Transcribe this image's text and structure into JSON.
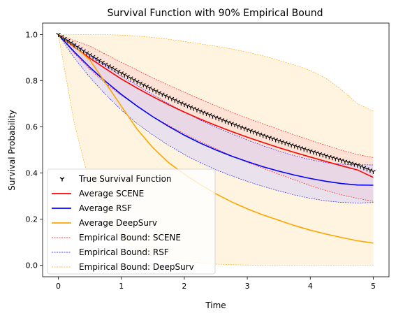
{
  "chart_data": {
    "type": "line",
    "title": "Survival Function with 90% Empirical Bound",
    "xlabel": "Time",
    "ylabel": "Survival Probability",
    "xlim": [
      -0.25,
      5.25
    ],
    "ylim": [
      -0.05,
      1.05
    ],
    "xticks": [
      0,
      1,
      2,
      3,
      4,
      5
    ],
    "xtick_labels": [
      "0",
      "1",
      "2",
      "3",
      "4",
      "5"
    ],
    "yticks": [
      0.0,
      0.2,
      0.4,
      0.6,
      0.8,
      1.0
    ],
    "ytick_labels": [
      "0.0",
      "0.2",
      "0.4",
      "0.6",
      "0.8",
      "1.0"
    ],
    "grid": false,
    "legend_position": "lower-left",
    "x": [
      0,
      0.25,
      0.5,
      0.75,
      1.0,
      1.25,
      1.5,
      1.75,
      2.0,
      2.25,
      2.5,
      2.75,
      3.0,
      3.25,
      3.5,
      3.75,
      4.0,
      4.25,
      4.5,
      4.75,
      5.0
    ],
    "series": [
      {
        "name": "True Survival Function",
        "style": "markers",
        "color": "#000000",
        "values": [
          1.0,
          0.955,
          0.912,
          0.871,
          0.833,
          0.796,
          0.761,
          0.728,
          0.697,
          0.668,
          0.641,
          0.614,
          0.588,
          0.563,
          0.539,
          0.517,
          0.495,
          0.474,
          0.454,
          0.434,
          0.406
        ]
      },
      {
        "name": "Average SCENE",
        "style": "line",
        "color": "#ff0000",
        "values": [
          1.0,
          0.947,
          0.898,
          0.852,
          0.808,
          0.768,
          0.731,
          0.696,
          0.664,
          0.634,
          0.606,
          0.58,
          0.555,
          0.532,
          0.51,
          0.489,
          0.469,
          0.45,
          0.431,
          0.413,
          0.381
        ]
      },
      {
        "name": "Average RSF",
        "style": "line",
        "color": "#0000ff",
        "values": [
          1.0,
          0.926,
          0.858,
          0.797,
          0.741,
          0.69,
          0.644,
          0.602,
          0.564,
          0.53,
          0.5,
          0.473,
          0.449,
          0.427,
          0.408,
          0.391,
          0.376,
          0.364,
          0.354,
          0.348,
          0.347
        ]
      },
      {
        "name": "Average DeepSurv",
        "style": "line",
        "color": "#ffa500",
        "values": [
          1.0,
          0.95,
          0.89,
          0.79,
          0.69,
          0.59,
          0.51,
          0.445,
          0.395,
          0.35,
          0.31,
          0.275,
          0.245,
          0.218,
          0.195,
          0.172,
          0.152,
          0.135,
          0.12,
          0.106,
          0.096
        ]
      },
      {
        "name": "Empirical Bound: SCENE",
        "style": "band",
        "color": "#ff0000",
        "fill": "#ffc8c8",
        "upper": [
          1.0,
          0.975,
          0.95,
          0.915,
          0.88,
          0.846,
          0.812,
          0.78,
          0.75,
          0.72,
          0.692,
          0.664,
          0.638,
          0.613,
          0.589,
          0.565,
          0.542,
          0.52,
          0.498,
          0.48,
          0.467
        ],
        "lower": [
          1.0,
          0.92,
          0.85,
          0.788,
          0.736,
          0.69,
          0.645,
          0.606,
          0.57,
          0.537,
          0.505,
          0.475,
          0.446,
          0.42,
          0.395,
          0.37,
          0.345,
          0.324,
          0.305,
          0.29,
          0.277
        ]
      },
      {
        "name": "Empirical Bound: RSF",
        "style": "band",
        "color": "#0000ff",
        "fill": "#c8c8ff",
        "upper": [
          1.0,
          0.96,
          0.91,
          0.865,
          0.82,
          0.78,
          0.74,
          0.7,
          0.665,
          0.63,
          0.598,
          0.57,
          0.543,
          0.518,
          0.495,
          0.475,
          0.458,
          0.445,
          0.438,
          0.436,
          0.435
        ],
        "lower": [
          1.0,
          0.9,
          0.815,
          0.74,
          0.673,
          0.614,
          0.565,
          0.52,
          0.48,
          0.445,
          0.414,
          0.388,
          0.363,
          0.342,
          0.322,
          0.305,
          0.29,
          0.279,
          0.272,
          0.27,
          0.272
        ]
      },
      {
        "name": "Empirical Bound: DeepSurv",
        "style": "band",
        "color": "#ffa500",
        "fill": "#ffd27f",
        "upper": [
          1.0,
          1.0,
          1.0,
          1.0,
          0.998,
          0.994,
          0.988,
          0.98,
          0.97,
          0.96,
          0.95,
          0.938,
          0.924,
          0.908,
          0.888,
          0.868,
          0.845,
          0.81,
          0.76,
          0.7,
          0.668
        ],
        "lower": [
          1.0,
          0.62,
          0.35,
          0.2,
          0.12,
          0.07,
          0.045,
          0.03,
          0.018,
          0.01,
          0.005,
          0.002,
          0.001,
          0.0,
          0.0,
          0.0,
          0.0,
          0.0,
          0.0,
          0.0,
          0.0
        ]
      }
    ]
  }
}
